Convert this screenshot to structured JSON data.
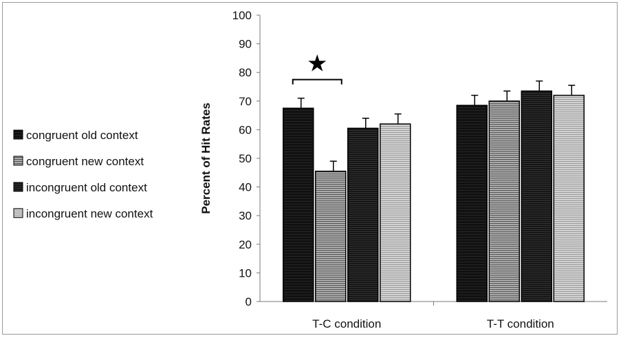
{
  "chart_data": {
    "type": "bar",
    "title": "",
    "xlabel": "",
    "ylabel": "Percent of Hit Rates",
    "ylim": [
      0,
      100
    ],
    "yticks": [
      0,
      10,
      20,
      30,
      40,
      50,
      60,
      70,
      80,
      90,
      100
    ],
    "grid": false,
    "legend_position": "left",
    "categories": [
      "T-C condition",
      "T-T condition"
    ],
    "series": [
      {
        "name": "congruent old context",
        "values": [
          67.5,
          68.5
        ],
        "errors": [
          3.5,
          3.5
        ],
        "color": "#111111"
      },
      {
        "name": "congruent new context",
        "values": [
          45.5,
          70.0
        ],
        "errors": [
          3.5,
          3.5
        ],
        "color": "#6e6e6e"
      },
      {
        "name": "incongruent old context",
        "values": [
          60.5,
          73.5
        ],
        "errors": [
          3.5,
          3.5
        ],
        "color": "#1c1c1c"
      },
      {
        "name": "incongruent new context",
        "values": [
          62.0,
          72.0
        ],
        "errors": [
          3.5,
          3.5
        ],
        "color": "#b4b4b4"
      }
    ],
    "annotations": [
      {
        "type": "significance",
        "symbol": "★",
        "category": "T-C condition",
        "between": [
          "congruent old context",
          "congruent new context"
        ]
      }
    ]
  }
}
